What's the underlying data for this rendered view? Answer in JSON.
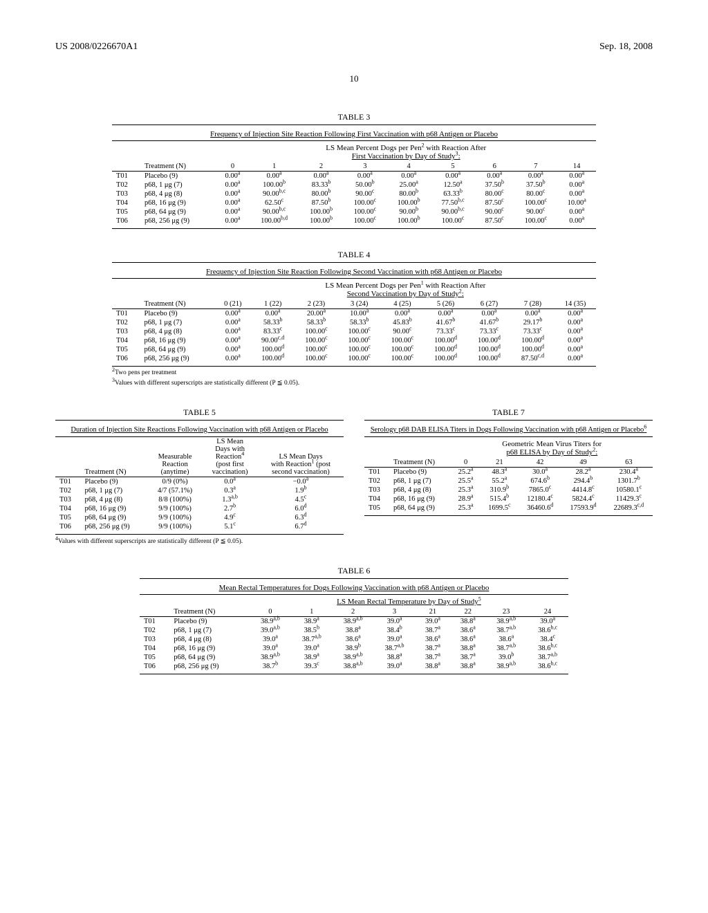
{
  "header": {
    "docNumber": "US 2008/0226670A1",
    "date": "Sep. 18, 2008",
    "pageNumber": "10"
  },
  "table3": {
    "caption": "TABLE 3",
    "title": "Frequency of Injection Site Reaction Following First Vaccination with p68 Antigen or Placebo",
    "subtitle1": "LS Mean Percent Dogs per Pen",
    "subtitle1_sup": "2",
    "subtitle1_cont": " with Reaction After",
    "subtitle2": "First Vaccination by Day of Study",
    "subtitle2_sup": "3",
    "col1": "Treatment (N)",
    "days": [
      "0",
      "1",
      "2",
      "3",
      "4",
      "5",
      "6",
      "7",
      "14"
    ],
    "rows": [
      {
        "id": "T01",
        "tr": "Placebo (9)",
        "v": [
          [
            "0.00",
            "a"
          ],
          [
            "0.00",
            "a"
          ],
          [
            "0.00",
            "a"
          ],
          [
            "0.00",
            "a"
          ],
          [
            "0.00",
            "a"
          ],
          [
            "0.00",
            "a"
          ],
          [
            "0.00",
            "a"
          ],
          [
            "0.00",
            "a"
          ],
          [
            "0.00",
            "a"
          ]
        ]
      },
      {
        "id": "T02",
        "tr": "p68, 1 μg (7)",
        "v": [
          [
            "0.00",
            "a"
          ],
          [
            "100.00",
            "b"
          ],
          [
            "83.33",
            "b"
          ],
          [
            "50.00",
            "b"
          ],
          [
            "25.00",
            "a"
          ],
          [
            "12.50",
            "a"
          ],
          [
            "37.50",
            "b"
          ],
          [
            "37.50",
            "b"
          ],
          [
            "0.00",
            "a"
          ]
        ]
      },
      {
        "id": "T03",
        "tr": "p68, 4 μg (8)",
        "v": [
          [
            "0.00",
            "a"
          ],
          [
            "90.00",
            "b,c"
          ],
          [
            "80.00",
            "b"
          ],
          [
            "90.00",
            "c"
          ],
          [
            "80.00",
            "b"
          ],
          [
            "63.33",
            "b"
          ],
          [
            "80.00",
            "c"
          ],
          [
            "80.00",
            "c"
          ],
          [
            "0.00",
            "a"
          ]
        ]
      },
      {
        "id": "T04",
        "tr": "p68, 16 μg (9)",
        "v": [
          [
            "0.00",
            "a"
          ],
          [
            "62.50",
            "c"
          ],
          [
            "87.50",
            "b"
          ],
          [
            "100.00",
            "c"
          ],
          [
            "100.00",
            "b"
          ],
          [
            "77.50",
            "b,c"
          ],
          [
            "87.50",
            "c"
          ],
          [
            "100.00",
            "c"
          ],
          [
            "10.00",
            "a"
          ]
        ]
      },
      {
        "id": "T05",
        "tr": "p68, 64 μg (9)",
        "v": [
          [
            "0.00",
            "a"
          ],
          [
            "90.00",
            "b,c"
          ],
          [
            "100.00",
            "b"
          ],
          [
            "100.00",
            "c"
          ],
          [
            "90.00",
            "b"
          ],
          [
            "90.00",
            "b,c"
          ],
          [
            "90.00",
            "c"
          ],
          [
            "90.00",
            "c"
          ],
          [
            "0.00",
            "a"
          ]
        ]
      },
      {
        "id": "T06",
        "tr": "p68, 256 μg (9)",
        "v": [
          [
            "0.00",
            "a"
          ],
          [
            "100.00",
            "b,d"
          ],
          [
            "100.00",
            "b"
          ],
          [
            "100.00",
            "c"
          ],
          [
            "100.00",
            "b"
          ],
          [
            "100.00",
            "c"
          ],
          [
            "87.50",
            "c"
          ],
          [
            "100.00",
            "c"
          ],
          [
            "0.00",
            "a"
          ]
        ]
      }
    ]
  },
  "table4": {
    "caption": "TABLE 4",
    "title": "Frequency of Injection Site Reaction Following Second Vaccination with p68 Antigen or Placebo",
    "subtitle1": "LS Mean Percent Dogs per Pen",
    "subtitle1_sup": "1",
    "subtitle1_cont": " with Reaction After",
    "subtitle2": "Second Vaccination by Day of Study",
    "subtitle2_sup": "2",
    "col1": "Treatment (N)",
    "days": [
      "0 (21)",
      "1 (22)",
      "2 (23)",
      "3 (24)",
      "4 (25)",
      "5 (26)",
      "6 (27)",
      "7 (28)",
      "14 (35)"
    ],
    "rows": [
      {
        "id": "T01",
        "tr": "Placebo (9)",
        "v": [
          [
            "0.00",
            "a"
          ],
          [
            "0.00",
            "a"
          ],
          [
            "20.00",
            "a"
          ],
          [
            "10.00",
            "a"
          ],
          [
            "0.00",
            "a"
          ],
          [
            "0.00",
            "a"
          ],
          [
            "0.00",
            "a"
          ],
          [
            "0.00",
            "a"
          ],
          [
            "0.00",
            "a"
          ]
        ]
      },
      {
        "id": "T02",
        "tr": "p68, 1 μg (7)",
        "v": [
          [
            "0.00",
            "a"
          ],
          [
            "58.33",
            "b"
          ],
          [
            "58.33",
            "b"
          ],
          [
            "58.33",
            "b"
          ],
          [
            "45.83",
            "b"
          ],
          [
            "41.67",
            "b"
          ],
          [
            "41.67",
            "b"
          ],
          [
            "29.17",
            "b"
          ],
          [
            "0.00",
            "a"
          ]
        ]
      },
      {
        "id": "T03",
        "tr": "p68, 4 μg (8)",
        "v": [
          [
            "0.00",
            "a"
          ],
          [
            "83.33",
            "c"
          ],
          [
            "100.00",
            "c"
          ],
          [
            "100.00",
            "c"
          ],
          [
            "90.00",
            "c"
          ],
          [
            "73.33",
            "c"
          ],
          [
            "73.33",
            "c"
          ],
          [
            "73.33",
            "c"
          ],
          [
            "0.00",
            "a"
          ]
        ]
      },
      {
        "id": "T04",
        "tr": "p68, 16 μg (9)",
        "v": [
          [
            "0.00",
            "a"
          ],
          [
            "90.00",
            "c,d"
          ],
          [
            "100.00",
            "c"
          ],
          [
            "100.00",
            "c"
          ],
          [
            "100.00",
            "c"
          ],
          [
            "100.00",
            "d"
          ],
          [
            "100.00",
            "d"
          ],
          [
            "100.00",
            "d"
          ],
          [
            "0.00",
            "a"
          ]
        ]
      },
      {
        "id": "T05",
        "tr": "p68, 64 μg (9)",
        "v": [
          [
            "0.00",
            "a"
          ],
          [
            "100.00",
            "d"
          ],
          [
            "100.00",
            "c"
          ],
          [
            "100.00",
            "c"
          ],
          [
            "100.00",
            "c"
          ],
          [
            "100.00",
            "d"
          ],
          [
            "100.00",
            "d"
          ],
          [
            "100.00",
            "d"
          ],
          [
            "0.00",
            "a"
          ]
        ]
      },
      {
        "id": "T06",
        "tr": "p68, 256 μg (9)",
        "v": [
          [
            "0.00",
            "a"
          ],
          [
            "100.00",
            "d"
          ],
          [
            "100.00",
            "c"
          ],
          [
            "100.00",
            "c"
          ],
          [
            "100.00",
            "c"
          ],
          [
            "100.00",
            "d"
          ],
          [
            "100.00",
            "d"
          ],
          [
            "87.50",
            "c,d"
          ],
          [
            "0.00",
            "a"
          ]
        ]
      }
    ],
    "footnote1_sup": "2",
    "footnote1": "Two pens per treatment",
    "footnote2_sup": "3",
    "footnote2": "Values with different superscripts are statistically different (P ≦ 0.05)."
  },
  "table5": {
    "caption": "TABLE 5",
    "title": "Duration of Injection Site Reactions Following Vaccination with p68 Antigen or Placebo",
    "h_treatment": "Treatment (N)",
    "h_measurable1": "Measurable",
    "h_measurable2": "Reaction",
    "h_measurable3": "(anytime)",
    "h_lsmean1": "LS Mean",
    "h_lsmean2": "Days with",
    "h_lsmean3": "Reaction",
    "h_lsmean3_sup": "4",
    "h_lsmean4": "(post first",
    "h_lsmean5": "vaccination)",
    "h_lsmean_d1": "LS Mean Days",
    "h_lsmean_d2": "with Reaction",
    "h_lsmean_d2_sup": "1",
    "h_lsmean_d2_cont": " (post",
    "h_lsmean_d3": "second vaccination)",
    "rows": [
      {
        "id": "T01",
        "tr": "Placebo (9)",
        "m": "0/9 (0%)",
        "d1": [
          "0.0",
          "a"
        ],
        "d2": [
          "−0.0",
          "a"
        ]
      },
      {
        "id": "T02",
        "tr": "p68, 1 μg (7)",
        "m": "4/7 (57.1%)",
        "d1": [
          "0.3",
          "a"
        ],
        "d2": [
          "1.9",
          "b"
        ]
      },
      {
        "id": "T03",
        "tr": "p68, 4 μg (8)",
        "m": "8/8 (100%)",
        "d1": [
          "1.3",
          "a,b"
        ],
        "d2": [
          "4.5",
          "c"
        ]
      },
      {
        "id": "T04",
        "tr": "p68, 16 μg (9)",
        "m": "9/9 (100%)",
        "d1": [
          "2.7",
          "b"
        ],
        "d2": [
          "6.0",
          "d"
        ]
      },
      {
        "id": "T05",
        "tr": "p68, 64 μg (9)",
        "m": "9/9 (100%)",
        "d1": [
          "4.9",
          "c"
        ],
        "d2": [
          "6.3",
          "d"
        ]
      },
      {
        "id": "T06",
        "tr": "p68, 256 μg (9)",
        "m": "9/9 (100%)",
        "d1": [
          "5.1",
          "c"
        ],
        "d2": [
          "6.7",
          "d"
        ]
      }
    ],
    "footnote_sup": "4",
    "footnote": "Values with different superscripts are statistically different (P ≦ 0.05)."
  },
  "table7": {
    "caption": "TABLE 7",
    "title": "Serology p68 DAB ELISA Titers in Dogs Following Vaccination with p68 Antigen or Placebo",
    "title_sup": "6",
    "subtitle1": "Geometric Mean Virus Titers for",
    "subtitle2": "p68 ELISA by Day of Study",
    "subtitle2_sup": "2",
    "h_treatment": "Treatment (N)",
    "days": [
      "0",
      "21",
      "42",
      "49",
      "63"
    ],
    "rows": [
      {
        "id": "T01",
        "tr": "Placebo (9)",
        "v": [
          [
            "25.2",
            "a"
          ],
          [
            "48.3",
            "a"
          ],
          [
            "30.0",
            "a"
          ],
          [
            "28.2",
            "a"
          ],
          [
            "230.4",
            "a"
          ]
        ]
      },
      {
        "id": "T02",
        "tr": "p68, 1 μg (7)",
        "v": [
          [
            "25.5",
            "a"
          ],
          [
            "55.2",
            "a"
          ],
          [
            "674.6",
            "b"
          ],
          [
            "294.4",
            "b"
          ],
          [
            "1301.7",
            "b"
          ]
        ]
      },
      {
        "id": "T03",
        "tr": "p68, 4 μg (8)",
        "v": [
          [
            "25.3",
            "a"
          ],
          [
            "310.9",
            "b"
          ],
          [
            "7865.0",
            "c"
          ],
          [
            "4414.8",
            "c"
          ],
          [
            "10580.1",
            "c"
          ]
        ]
      },
      {
        "id": "T04",
        "tr": "p68, 16 μg (9)",
        "v": [
          [
            "28.9",
            "a"
          ],
          [
            "515.4",
            "b"
          ],
          [
            "12180.4",
            "c"
          ],
          [
            "5824.4",
            "c"
          ],
          [
            "11429.3",
            "c"
          ]
        ]
      },
      {
        "id": "T05",
        "tr": "p68, 64 μg (9)",
        "v": [
          [
            "25.3",
            "a"
          ],
          [
            "1699.5",
            "c"
          ],
          [
            "36460.6",
            "d"
          ],
          [
            "17593.9",
            "d"
          ],
          [
            "22689.3",
            "c,d"
          ]
        ]
      }
    ]
  },
  "table6": {
    "caption": "TABLE 6",
    "title": "Mean Rectal Temperatures for Dogs Following Vaccination with p68 Antigen or Placebo",
    "subtitle": "LS Mean Rectal Temperature by Day of Study",
    "subtitle_sup": "5",
    "h_treatment": "Treatment (N)",
    "days": [
      "0",
      "1",
      "2",
      "3",
      "21",
      "22",
      "23",
      "24"
    ],
    "rows": [
      {
        "id": "T01",
        "tr": "Placebo (9)",
        "v": [
          [
            "38.9",
            "a,b"
          ],
          [
            "38.9",
            "a"
          ],
          [
            "38.9",
            "a,b"
          ],
          [
            "39.0",
            "a"
          ],
          [
            "39.0",
            "a"
          ],
          [
            "38.8",
            "a"
          ],
          [
            "38.9",
            "a,b"
          ],
          [
            "39.0",
            "a"
          ]
        ]
      },
      {
        "id": "T02",
        "tr": "p68, 1 μg (7)",
        "v": [
          [
            "39.0",
            "a,b"
          ],
          [
            "38.5",
            "b"
          ],
          [
            "38.8",
            "a"
          ],
          [
            "38.4",
            "b"
          ],
          [
            "38.7",
            "a"
          ],
          [
            "38.6",
            "a"
          ],
          [
            "38.7",
            "a,b"
          ],
          [
            "38.6",
            "b,c"
          ]
        ]
      },
      {
        "id": "T03",
        "tr": "p68, 4 μg (8)",
        "v": [
          [
            "39.0",
            "a"
          ],
          [
            "38.7",
            "a,b"
          ],
          [
            "38.6",
            "a"
          ],
          [
            "39.0",
            "a"
          ],
          [
            "38.6",
            "a"
          ],
          [
            "38.6",
            "a"
          ],
          [
            "38.6",
            "a"
          ],
          [
            "38.4",
            "c"
          ]
        ]
      },
      {
        "id": "T04",
        "tr": "p68, 16 μg (9)",
        "v": [
          [
            "39.0",
            "a"
          ],
          [
            "39.0",
            "a"
          ],
          [
            "38.9",
            "b"
          ],
          [
            "38.7",
            "a,b"
          ],
          [
            "38.7",
            "a"
          ],
          [
            "38.8",
            "a"
          ],
          [
            "38.7",
            "a,b"
          ],
          [
            "38.6",
            "b,c"
          ]
        ]
      },
      {
        "id": "T05",
        "tr": "p68, 64 μg (9)",
        "v": [
          [
            "38.9",
            "a,b"
          ],
          [
            "38.9",
            "a"
          ],
          [
            "38.9",
            "a,b"
          ],
          [
            "38.8",
            "a"
          ],
          [
            "38.7",
            "a"
          ],
          [
            "38.7",
            "a"
          ],
          [
            "39.0",
            "b"
          ],
          [
            "38.7",
            "a,b"
          ]
        ]
      },
      {
        "id": "T06",
        "tr": "p68, 256 μg (9)",
        "v": [
          [
            "38.7",
            "b"
          ],
          [
            "39.3",
            "c"
          ],
          [
            "38.8",
            "a,b"
          ],
          [
            "39.0",
            "a"
          ],
          [
            "38.8",
            "a"
          ],
          [
            "38.8",
            "a"
          ],
          [
            "38.9",
            "a,b"
          ],
          [
            "38.6",
            "b,c"
          ]
        ]
      }
    ]
  }
}
